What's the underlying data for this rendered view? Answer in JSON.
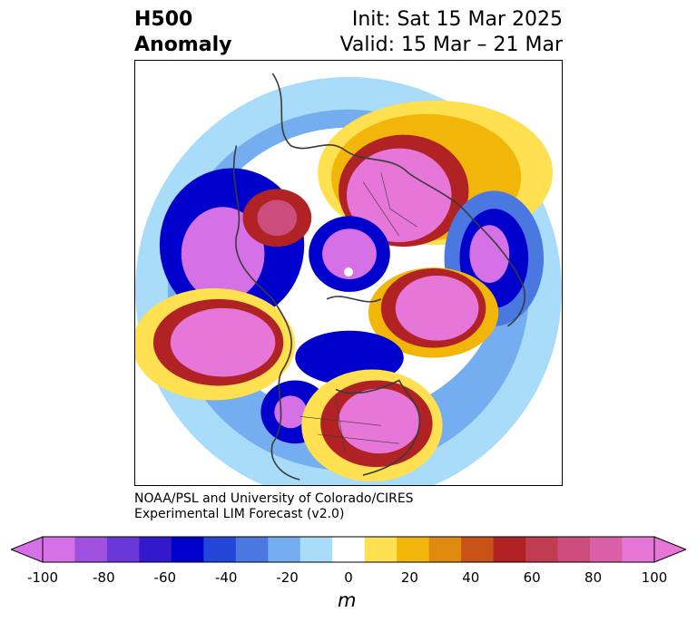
{
  "title": {
    "left_line1": "H500",
    "left_line2": "Anomaly",
    "right_line1": "Init: Sat 15 Mar 2025",
    "right_line2": "Valid: 15 Mar – 21 Mar"
  },
  "credit": {
    "line1": "NOAA/PSL and University of Colorado/CIRES",
    "line2": "Experimental LIM Forecast (v2.0)"
  },
  "colorbar": {
    "unit": "m",
    "levels": [
      -100,
      -90,
      -80,
      -70,
      -60,
      -50,
      -40,
      -30,
      -20,
      -10,
      10,
      20,
      30,
      40,
      50,
      60,
      70,
      80,
      90,
      100
    ],
    "tick_labels": [
      "-100",
      "-80",
      "-60",
      "-40",
      "-20",
      "0",
      "20",
      "40",
      "60",
      "80",
      "100"
    ],
    "colors": [
      "#d670e6",
      "#a050de",
      "#6a38d8",
      "#3418cc",
      "#0000cc",
      "#2446d8",
      "#4a78e0",
      "#74aef0",
      "#a8dcf8",
      "#ffffff",
      "#ffe050",
      "#f2b50a",
      "#e08a10",
      "#c85218",
      "#b02224",
      "#c03c50",
      "#cc4c7c",
      "#d960a8",
      "#e676d8"
    ],
    "min_color": "#d670e6",
    "max_color": "#e676d8"
  },
  "map": {
    "projection": "north-polar-stereographic",
    "colors": {
      "neg_lightblue": "#a8dcf8",
      "neg_blue": "#74aef0",
      "neg_medblue": "#4a78e0",
      "neg_darkblue": "#0000cc",
      "neg_violet": "#3418cc",
      "neg_purple": "#d670e6",
      "pos_yellow": "#ffe050",
      "pos_gold": "#f2b50a",
      "pos_orange": "#e08a10",
      "pos_red": "#b02224",
      "pos_magenta": "#cc4c7c",
      "pos_pink": "#e676d8",
      "coastline": "#3a3a3a"
    }
  }
}
